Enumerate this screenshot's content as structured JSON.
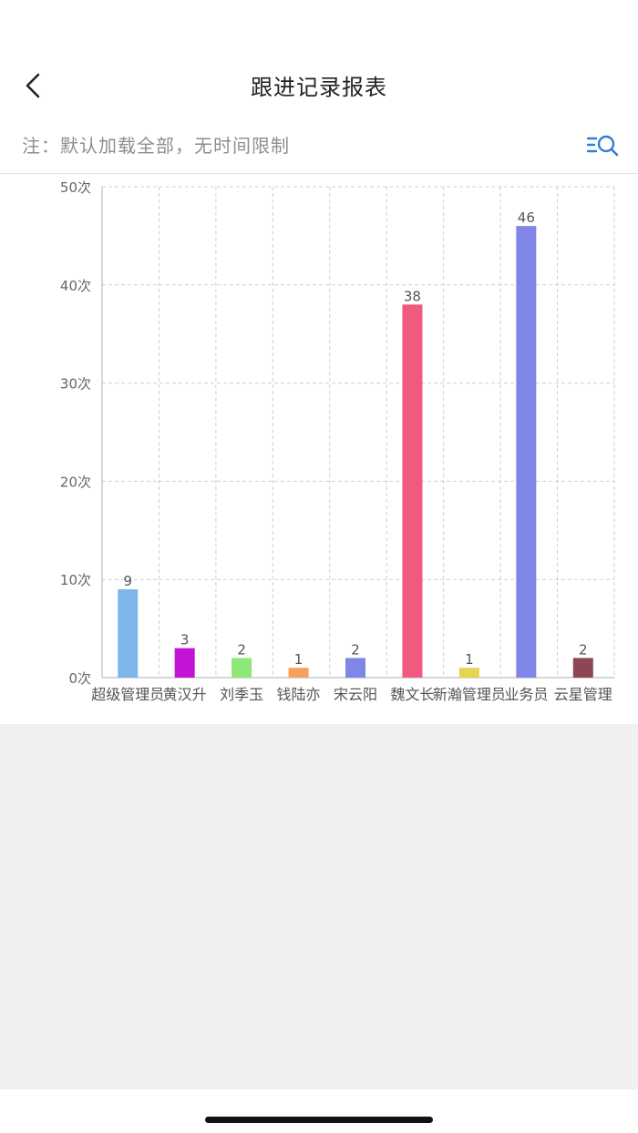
{
  "header": {
    "title": "跟进记录报表"
  },
  "notice": {
    "text": "注：默认加载全部，无时间限制"
  },
  "icons": {
    "back": "chevron-left-icon",
    "filter": "search-list-icon"
  },
  "colors": {
    "accent": "#2f7fd8",
    "grid": "#cfcfcf",
    "axis": "#bdbdbd",
    "tick_text": "#666666"
  },
  "chart_data": {
    "type": "bar",
    "categories": [
      "超级管理员",
      "黄汉升",
      "刘季玉",
      "钱陆亦",
      "宋云阳",
      "魏文长",
      "新瀚管理员",
      "业务员",
      "云星管理员"
    ],
    "category_labels": [
      "超级管理员",
      "黄汉升",
      "刘季玉",
      "钱陆亦",
      "宋云阳",
      "魏文长",
      "新瀚管理员",
      "业务员",
      "云星管理"
    ],
    "values": [
      9,
      3,
      2,
      1,
      2,
      38,
      1,
      46,
      2
    ],
    "colors": [
      "#7eb6ec",
      "#c313d6",
      "#8ee776",
      "#f6a060",
      "#8085e8",
      "#ef5a7e",
      "#e6d352",
      "#8085e8",
      "#8e4653"
    ],
    "ylim": [
      0,
      50
    ],
    "yticks": [
      0,
      10,
      20,
      30,
      40,
      50
    ],
    "ytick_labels": [
      "0次",
      "10次",
      "20次",
      "30次",
      "40次",
      "50次"
    ],
    "grid": true,
    "data_labels": true
  }
}
